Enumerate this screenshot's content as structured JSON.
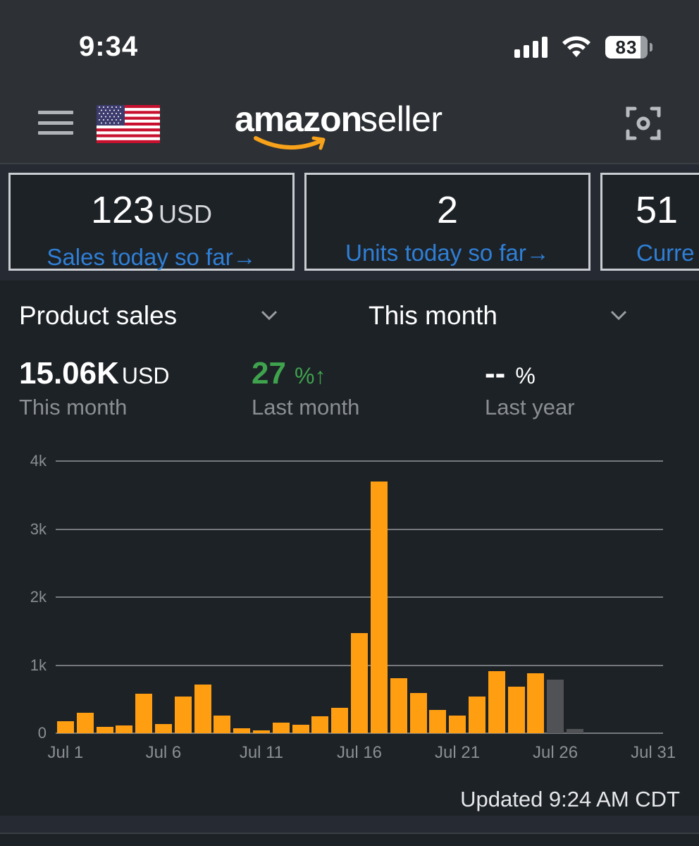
{
  "status_bar": {
    "time": "9:34",
    "battery_level": "83",
    "icons": [
      "cellular-signal-icon",
      "wifi-icon",
      "battery-icon"
    ]
  },
  "header": {
    "logo_primary": "amazon",
    "logo_secondary": "seller",
    "menu_icon": "hamburger-menu-icon",
    "marketplace_flag": "us-flag-icon",
    "scan_icon": "camera-scan-icon"
  },
  "cards": [
    {
      "value": "123",
      "unit": "USD",
      "label": "Sales today so far→"
    },
    {
      "value": "2",
      "unit": "",
      "label": "Units today so far→"
    },
    {
      "value": "51",
      "unit": "",
      "label": "Curre"
    }
  ],
  "chart_panel": {
    "metric_selector": "Product sales",
    "period_selector": "This month",
    "summary": {
      "total_value": "15.06K",
      "total_unit": "USD",
      "total_label": "This month",
      "vs_last_month_value": "27",
      "vs_last_month_unit": "%↑",
      "vs_last_month_label": "Last month",
      "vs_last_year_value": "--",
      "vs_last_year_unit": "%",
      "vs_last_year_label": "Last year"
    },
    "updated_text": "Updated 9:24 AM CDT"
  },
  "colors": {
    "bar_current": "#ff9e10",
    "bar_projected": "#505255",
    "link_blue": "#2f7fd6",
    "positive_green": "#3fa34d",
    "logo_smile": "#f7a21a"
  },
  "chart_data": {
    "type": "bar",
    "title": "Product sales - This month",
    "xlabel": "",
    "ylabel": "USD",
    "ylim": [
      0,
      4000
    ],
    "grid": true,
    "yticks": [
      "0",
      "1k",
      "2k",
      "3k",
      "4k"
    ],
    "xticks": [
      "Jul 1",
      "Jul 6",
      "Jul 11",
      "Jul 16",
      "Jul 21",
      "Jul 26",
      "Jul 31"
    ],
    "categories": [
      "Jul 1",
      "Jul 2",
      "Jul 3",
      "Jul 4",
      "Jul 5",
      "Jul 6",
      "Jul 7",
      "Jul 8",
      "Jul 9",
      "Jul 10",
      "Jul 11",
      "Jul 12",
      "Jul 13",
      "Jul 14",
      "Jul 15",
      "Jul 16",
      "Jul 17",
      "Jul 18",
      "Jul 19",
      "Jul 20",
      "Jul 21",
      "Jul 22",
      "Jul 23",
      "Jul 24",
      "Jul 25",
      "Jul 26",
      "Jul 27",
      "Jul 28",
      "Jul 29",
      "Jul 30",
      "Jul 31"
    ],
    "series": [
      {
        "name": "Product sales (this month)",
        "color": "#ff9e10",
        "values": [
          180,
          300,
          95,
          115,
          580,
          135,
          540,
          710,
          260,
          70,
          40,
          155,
          125,
          250,
          375,
          1470,
          3700,
          810,
          595,
          345,
          260,
          540,
          915,
          680,
          880,
          null,
          null,
          null,
          null,
          null,
          null
        ]
      },
      {
        "name": "Comparison / remaining days",
        "color": "#505255",
        "values": [
          null,
          null,
          null,
          null,
          null,
          null,
          null,
          null,
          null,
          null,
          null,
          null,
          null,
          null,
          null,
          null,
          null,
          null,
          null,
          null,
          null,
          null,
          null,
          null,
          null,
          790,
          60,
          null,
          null,
          null,
          null
        ]
      }
    ]
  }
}
